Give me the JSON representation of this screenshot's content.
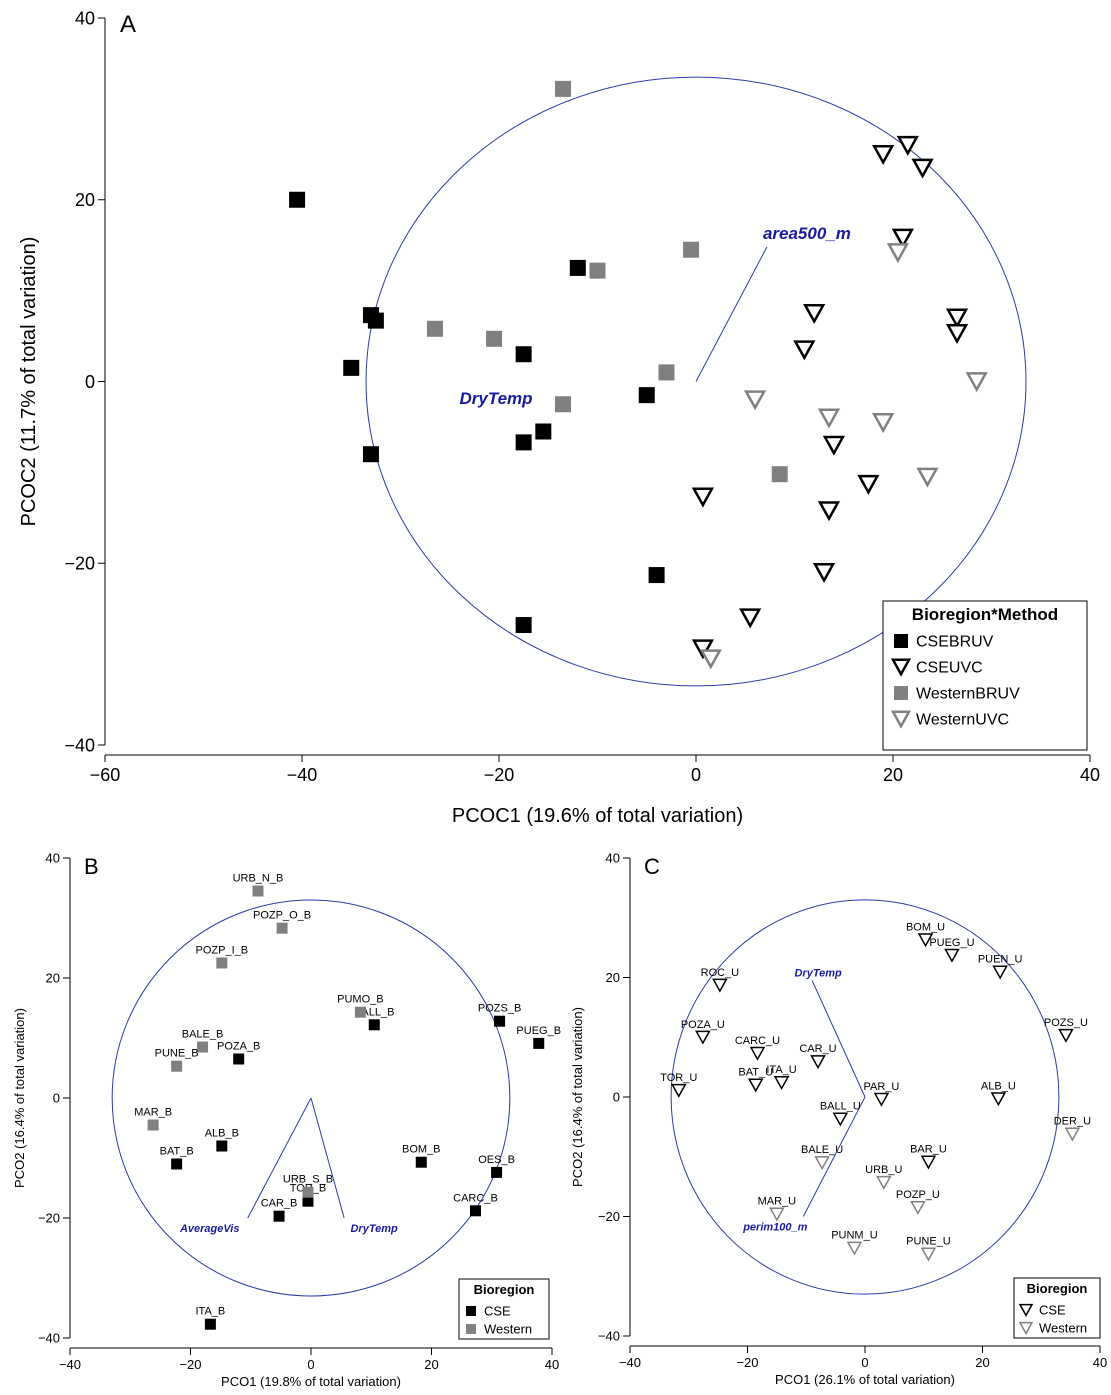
{
  "chart_data": [
    {
      "panel": "A",
      "type": "scatter",
      "xlabel": "PCOC1 (19.6% of total variation)",
      "ylabel": "PCOC2 (11.7% of total variation)",
      "xlim": [
        -60,
        40
      ],
      "ylim": [
        -40,
        40
      ],
      "xticks": [
        -60,
        -40,
        -20,
        0,
        20,
        40
      ],
      "yticks": [
        -40,
        -20,
        0,
        20,
        40
      ],
      "xtick_labels": [
        "−60",
        "−40",
        "−20",
        "0",
        "20",
        "40"
      ],
      "ytick_labels": [
        "−40",
        "−20",
        "0",
        "20",
        "40"
      ],
      "circle_radius": 33.5,
      "legend_title": "Bioregion*Method",
      "series": [
        {
          "name": "CSEBRUV",
          "marker": "square",
          "color": "#000000",
          "points": [
            [
              -40.5,
              20
            ],
            [
              -33,
              7.3
            ],
            [
              -32.5,
              6.7
            ],
            [
              -35,
              1.5
            ],
            [
              -33,
              -8
            ],
            [
              -17.5,
              3
            ],
            [
              -17.5,
              -6.7
            ],
            [
              -15.5,
              -5.5
            ],
            [
              -12,
              12.5
            ],
            [
              -5,
              -1.5
            ],
            [
              -4,
              -21.3
            ],
            [
              -17.5,
              -26.8
            ]
          ]
        },
        {
          "name": "CSEUVC",
          "marker": "triangle",
          "color": "#000000",
          "points": [
            [
              19,
              25
            ],
            [
              21.5,
              26
            ],
            [
              23,
              23.5
            ],
            [
              21,
              15.8
            ],
            [
              12,
              7.5
            ],
            [
              11,
              3.5
            ],
            [
              26.5,
              7
            ],
            [
              26.5,
              5.3
            ],
            [
              14,
              -7
            ],
            [
              17.5,
              -11.3
            ],
            [
              13.5,
              -14.2
            ],
            [
              0.7,
              -12.7
            ],
            [
              13,
              -21
            ],
            [
              5.5,
              -26
            ],
            [
              0.7,
              -29.4
            ]
          ]
        },
        {
          "name": "WesternBRUV",
          "marker": "square",
          "color": "#808080",
          "points": [
            [
              -13.5,
              32.2
            ],
            [
              -0.5,
              14.5
            ],
            [
              -10,
              12.2
            ],
            [
              -26.5,
              5.8
            ],
            [
              -20.5,
              4.7
            ],
            [
              -3,
              1
            ],
            [
              -13.5,
              -2.5
            ],
            [
              8.5,
              -10.2
            ]
          ]
        },
        {
          "name": "WesternUVC",
          "marker": "triangle",
          "color": "#808080",
          "points": [
            [
              20.5,
              14.2
            ],
            [
              28.5,
              0
            ],
            [
              6,
              -2
            ],
            [
              13.5,
              -4
            ],
            [
              19,
              -4.5
            ],
            [
              23.5,
              -10.5
            ],
            [
              1.5,
              -30.5
            ]
          ]
        }
      ],
      "vectors": [
        {
          "label": "area500_m",
          "x": 7.2,
          "y": 14.8
        },
        {
          "label": "DryTemp",
          "x": 0,
          "y": 0
        }
      ]
    },
    {
      "panel": "B",
      "type": "scatter",
      "xlabel": "PCO1 (19.8% of total variation)",
      "ylabel": "PCO2 (16.4% of total variation)",
      "xlim": [
        -40,
        40
      ],
      "ylim": [
        -40,
        40
      ],
      "xticks": [
        -40,
        -20,
        0,
        20,
        40
      ],
      "yticks": [
        -40,
        -20,
        0,
        20,
        40
      ],
      "xtick_labels": [
        "−40",
        "−20",
        "0",
        "20",
        "40"
      ],
      "ytick_labels": [
        "−40",
        "−20",
        "0",
        "20",
        "40"
      ],
      "circle_radius": 33,
      "legend_title": "Bioregion",
      "series": [
        {
          "name": "CSE",
          "marker": "square",
          "color": "#000000",
          "points": [
            {
              "label": "BALL_B",
              "x": 10.5,
              "y": 12.2
            },
            {
              "label": "POZS_B",
              "x": 31.3,
              "y": 12.8
            },
            {
              "label": "PUEG_B",
              "x": 37.8,
              "y": 9.1
            },
            {
              "label": "POZA_B",
              "x": -12,
              "y": 6.5
            },
            {
              "label": "ALB_B",
              "x": -14.8,
              "y": -8
            },
            {
              "label": "BAT_B",
              "x": -22.3,
              "y": -11
            },
            {
              "label": "BOM_B",
              "x": 18.3,
              "y": -10.7
            },
            {
              "label": "OES_B",
              "x": 30.8,
              "y": -12.4
            },
            {
              "label": "CARC_B",
              "x": 27.3,
              "y": -18.8
            },
            {
              "label": "CAR_B",
              "x": -5.3,
              "y": -19.7
            },
            {
              "label": "TOR_B",
              "x": -0.5,
              "y": -17.2
            },
            {
              "label": "ITA_B",
              "x": -16.7,
              "y": -37.7
            }
          ]
        },
        {
          "name": "Western",
          "marker": "square",
          "color": "#808080",
          "points": [
            {
              "label": "URB_N_B",
              "x": -8.8,
              "y": 34.5
            },
            {
              "label": "POZP_O_B",
              "x": -4.8,
              "y": 28.3
            },
            {
              "label": "POZP_I_B",
              "x": -14.8,
              "y": 22.5
            },
            {
              "label": "PUMO_B",
              "x": 8.2,
              "y": 14.3
            },
            {
              "label": "BALE_B",
              "x": -18,
              "y": 8.5
            },
            {
              "label": "PUNE_B",
              "x": -22.3,
              "y": 5.3
            },
            {
              "label": "MAR_B",
              "x": -26.2,
              "y": -4.5
            },
            {
              "label": "URB_S_B",
              "x": -0.5,
              "y": -15.7
            }
          ]
        }
      ],
      "vectors": [
        {
          "label": "AverageVis",
          "x": -10.5,
          "y": -20
        },
        {
          "label": "DryTemp",
          "x": 5.5,
          "y": -20
        }
      ]
    },
    {
      "panel": "C",
      "type": "scatter",
      "xlabel": "PCO1 (26.1% of total variation)",
      "ylabel": "PCO2 (16.4% of total variation)",
      "xlim": [
        -40,
        40
      ],
      "ylim": [
        -40,
        40
      ],
      "xticks": [
        -40,
        -20,
        0,
        20,
        40
      ],
      "yticks": [
        -40,
        -20,
        0,
        20,
        40
      ],
      "xtick_labels": [
        "−40",
        "−20",
        "0",
        "20",
        "40"
      ],
      "ytick_labels": [
        "−40",
        "−20",
        "0",
        "20",
        "40"
      ],
      "circle_radius": 33,
      "legend_title": "Bioregion",
      "series": [
        {
          "name": "CSE",
          "marker": "triangle",
          "color": "#000000",
          "points": [
            {
              "label": "BOM_U",
              "x": 10.3,
              "y": 26.3
            },
            {
              "label": "PUEG_U",
              "x": 14.8,
              "y": 23.7
            },
            {
              "label": "PUEN_U",
              "x": 23,
              "y": 20.9
            },
            {
              "label": "ROC_U",
              "x": -24.7,
              "y": 18.7
            },
            {
              "label": "POZA_U",
              "x": -27.6,
              "y": 10
            },
            {
              "label": "POZS_U",
              "x": 34.2,
              "y": 10.3
            },
            {
              "label": "CARC_U",
              "x": -18.3,
              "y": 7.3
            },
            {
              "label": "CAR_U",
              "x": -8,
              "y": 5.9
            },
            {
              "label": "BAT_U",
              "x": -18.6,
              "y": 2
            },
            {
              "label": "ITA_U",
              "x": -14.2,
              "y": 2.4
            },
            {
              "label": "TOR_U",
              "x": -31.7,
              "y": 1.1
            },
            {
              "label": "PAR_U",
              "x": 2.8,
              "y": -0.4
            },
            {
              "label": "ALB_U",
              "x": 22.7,
              "y": -0.3
            },
            {
              "label": "BALL_U",
              "x": -4.2,
              "y": -3.7
            },
            {
              "label": "BAR_U",
              "x": 10.8,
              "y": -10.9
            }
          ]
        },
        {
          "name": "Western",
          "marker": "triangle",
          "color": "#808080",
          "points": [
            {
              "label": "DER_U",
              "x": 35.3,
              "y": -6.2
            },
            {
              "label": "BALE_U",
              "x": -7.3,
              "y": -11
            },
            {
              "label": "URB_U",
              "x": 3.2,
              "y": -14.3
            },
            {
              "label": "POZP_U",
              "x": 9,
              "y": -18.5
            },
            {
              "label": "MAR_U",
              "x": -15,
              "y": -19.6
            },
            {
              "label": "PUNM_U",
              "x": -1.8,
              "y": -25.3
            },
            {
              "label": "PUNE_U",
              "x": 10.8,
              "y": -26.3
            }
          ]
        }
      ],
      "vectors": [
        {
          "label": "DryTemp",
          "x": -9,
          "y": 19.5
        },
        {
          "label": "perim100_m",
          "x": -10.5,
          "y": -20
        }
      ]
    }
  ]
}
